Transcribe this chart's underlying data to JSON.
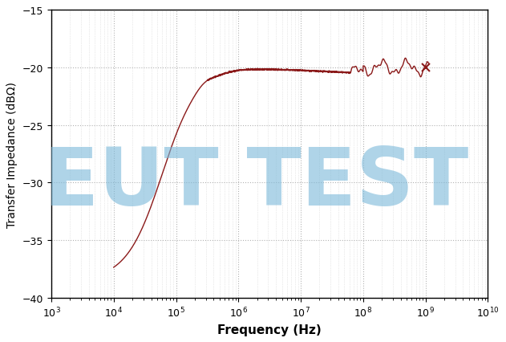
{
  "xlabel": "Frequency (Hz)",
  "ylabel": "Transfer Impedance (dBΩ)",
  "xlim_log": [
    3,
    10
  ],
  "ylim": [
    -40,
    -15
  ],
  "yticks": [
    -40,
    -35,
    -30,
    -25,
    -20,
    -15
  ],
  "line_color": "#8B1A1A",
  "marker_color": "#8B1A1A",
  "background_color": "#ffffff",
  "grid_color": "#aaaaaa",
  "watermark_text": "EUT TEST",
  "watermark_color": "#7ab8d9",
  "watermark_alpha": 0.6,
  "watermark_fontsize": 72,
  "xlabel_fontsize": 11,
  "ylabel_fontsize": 10,
  "tick_labelsize": 9
}
